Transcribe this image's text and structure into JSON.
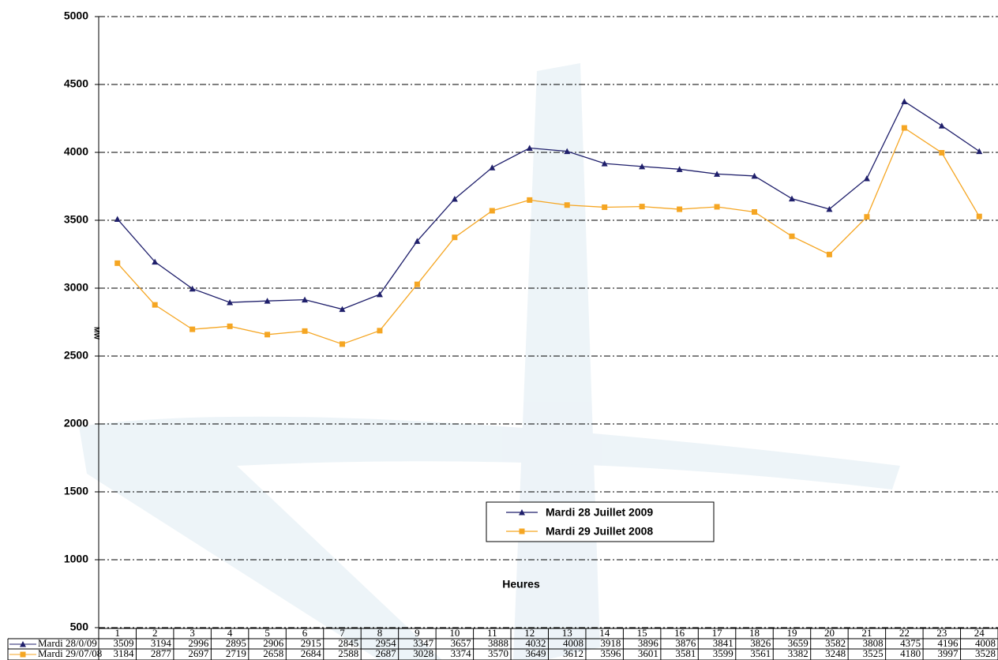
{
  "chart_data": {
    "type": "line",
    "ylabel": "MW",
    "xlabel": "Heures",
    "categories": [
      1,
      2,
      3,
      4,
      5,
      6,
      7,
      8,
      9,
      10,
      11,
      12,
      13,
      14,
      15,
      16,
      17,
      18,
      19,
      20,
      21,
      22,
      23,
      24
    ],
    "series": [
      {
        "name": "Mardi 28 Juillet 2009",
        "table_label": "Mardi 28/0/09",
        "color": "#1f1f6b",
        "marker": "triangle",
        "values": [
          3509,
          3194,
          2996,
          2895,
          2906,
          2915,
          2845,
          2954,
          3347,
          3657,
          3888,
          4032,
          4008,
          3918,
          3896,
          3876,
          3841,
          3826,
          3659,
          3582,
          3808,
          4375,
          4196,
          4008
        ]
      },
      {
        "name": "Mardi 29 Juillet 2008",
        "table_label": "Mardi 29/07/08",
        "color": "#f5a623",
        "marker": "square",
        "values": [
          3184,
          2877,
          2697,
          2719,
          2658,
          2684,
          2588,
          2687,
          3028,
          3374,
          3570,
          3649,
          3612,
          3596,
          3601,
          3581,
          3599,
          3561,
          3382,
          3248,
          3525,
          4180,
          3997,
          3528
        ]
      }
    ],
    "ylim": [
      500,
      5000
    ],
    "yticks": [
      500,
      1000,
      1500,
      2000,
      2500,
      3000,
      3500,
      4000,
      4500,
      5000
    ],
    "grid": true,
    "legend": "lower center"
  }
}
